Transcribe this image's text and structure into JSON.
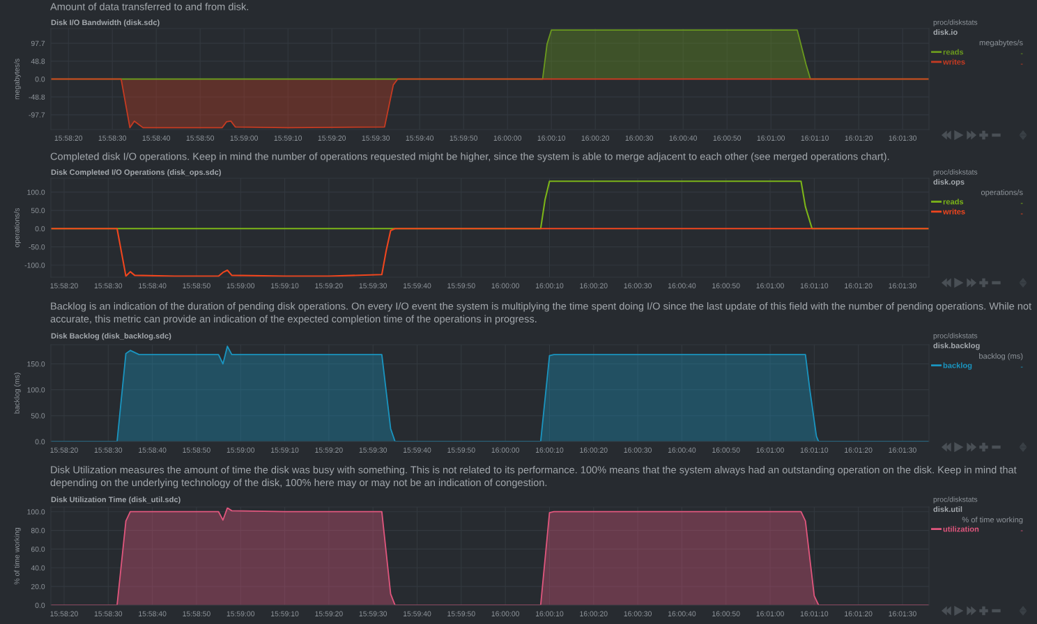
{
  "chart_data": [
    {
      "type": "area",
      "subtitle": "Amount of data transferred to and from disk.",
      "title": "Disk I/O Bandwidth (disk.sdc)",
      "ylabel": "megabytes/s",
      "annotations": [
        "proc/diskstats",
        "disk.io",
        "megabytes/s",
        "-",
        "-"
      ],
      "legend": "right",
      "grid": true,
      "xlim": [
        15.971111,
        16.026667
      ],
      "ylim": [
        -138,
        138
      ],
      "yticks": [
        97.7,
        48.8,
        {
          "value": 0,
          "label": "0.0"
        },
        -48.8,
        -97.7
      ],
      "xticks": [
        {
          "value": 15.972222,
          "label": "15:58:20"
        },
        {
          "value": 15.975,
          "label": "15:58:30"
        },
        {
          "value": 15.977778,
          "label": "15:58:40"
        },
        {
          "value": 15.980556,
          "label": "15:58:50"
        },
        {
          "value": 15.983333,
          "label": "15:59:00"
        },
        {
          "value": 15.986111,
          "label": "15:59:10"
        },
        {
          "value": 15.988889,
          "label": "15:59:20"
        },
        {
          "value": 15.991667,
          "label": "15:59:30"
        },
        {
          "value": 15.994444,
          "label": "15:59:40"
        },
        {
          "value": 15.997222,
          "label": "15:59:50"
        },
        {
          "value": 16.0,
          "label": "16:00:00"
        },
        {
          "value": 16.002778,
          "label": "16:00:10"
        },
        {
          "value": 16.005556,
          "label": "16:00:20"
        },
        {
          "value": 16.008333,
          "label": "16:00:30"
        },
        {
          "value": 16.011111,
          "label": "16:00:40"
        },
        {
          "value": 16.013889,
          "label": "16:00:50"
        },
        {
          "value": 16.016667,
          "label": "16:01:00"
        },
        {
          "value": 16.019444,
          "label": "16:01:10"
        },
        {
          "value": 16.022222,
          "label": "16:01:20"
        },
        {
          "value": 16.025,
          "label": "16:01:30"
        }
      ],
      "series": [
        {
          "name": "reads",
          "color": "#6b9a1e",
          "x": [
            15.971111,
            16.002222,
            16.0025,
            16.002778,
            16.008333,
            16.013889,
            16.018333,
            16.018889,
            16.019167,
            16.026667
          ],
          "values": [
            0,
            0,
            95,
            134,
            134,
            134,
            134,
            40,
            0,
            0
          ]
        },
        {
          "name": "writes",
          "color": "#c63b22",
          "x": [
            15.971111,
            15.975556,
            15.976111,
            15.976389,
            15.976944,
            15.979167,
            15.981944,
            15.982222,
            15.9825,
            15.982778,
            15.986111,
            15.988889,
            15.992222,
            15.992778,
            15.993056,
            16.026667
          ],
          "values": [
            0,
            0,
            -133,
            -115,
            -133,
            -133,
            -133,
            -117,
            -115,
            -131,
            -133,
            -132,
            -131,
            -16,
            0,
            0
          ]
        }
      ]
    },
    {
      "type": "line",
      "subtitle": "Completed disk I/O operations. Keep in mind the number of operations requested might be higher, since the system is able to merge adjacent to each other (see merged operations chart).",
      "title": "Disk Completed I/O Operations (disk_ops.sdc)",
      "ylabel": "operations/s",
      "annotations": [
        "proc/diskstats",
        "disk.ops",
        "operations/s",
        "-",
        "-"
      ],
      "legend": "right",
      "grid": true,
      "xlim": [
        15.971389,
        16.026667
      ],
      "ylim": [
        -133,
        138
      ],
      "yticks": [
        {
          "value": 100,
          "label": "100.0"
        },
        {
          "value": 50,
          "label": "50.0"
        },
        {
          "value": 0,
          "label": "0.0"
        },
        {
          "value": -50,
          "label": "-50.0"
        },
        {
          "value": -100,
          "label": "-100.0"
        }
      ],
      "xticks": [
        {
          "value": 15.972222,
          "label": "15:58:20"
        },
        {
          "value": 15.975,
          "label": "15:58:30"
        },
        {
          "value": 15.977778,
          "label": "15:58:40"
        },
        {
          "value": 15.980556,
          "label": "15:58:50"
        },
        {
          "value": 15.983333,
          "label": "15:59:00"
        },
        {
          "value": 15.986111,
          "label": "15:59:10"
        },
        {
          "value": 15.988889,
          "label": "15:59:20"
        },
        {
          "value": 15.991667,
          "label": "15:59:30"
        },
        {
          "value": 15.994444,
          "label": "15:59:40"
        },
        {
          "value": 15.997222,
          "label": "15:59:50"
        },
        {
          "value": 16.0,
          "label": "16:00:00"
        },
        {
          "value": 16.002778,
          "label": "16:00:10"
        },
        {
          "value": 16.005556,
          "label": "16:00:20"
        },
        {
          "value": 16.008333,
          "label": "16:00:30"
        },
        {
          "value": 16.011111,
          "label": "16:00:40"
        },
        {
          "value": 16.013889,
          "label": "16:00:50"
        },
        {
          "value": 16.016667,
          "label": "16:01:00"
        },
        {
          "value": 16.019444,
          "label": "16:01:10"
        },
        {
          "value": 16.022222,
          "label": "16:01:20"
        },
        {
          "value": 16.025,
          "label": "16:01:30"
        }
      ],
      "series": [
        {
          "name": "reads",
          "color": "#7cb518",
          "x": [
            15.971389,
            16.002222,
            16.0025,
            16.002778,
            16.008333,
            16.013889,
            16.018611,
            16.018889,
            16.019306,
            16.026667
          ],
          "values": [
            0,
            0,
            80,
            130,
            130,
            130,
            130,
            60,
            0,
            0
          ]
        },
        {
          "name": "writes",
          "color": "#f0461e",
          "x": [
            15.971389,
            15.975556,
            15.976111,
            15.976389,
            15.976667,
            15.979167,
            15.981944,
            15.982222,
            15.9825,
            15.982778,
            15.986111,
            15.988889,
            15.992222,
            15.9925,
            15.992778,
            15.993056,
            16.026667
          ],
          "values": [
            0,
            0,
            -130,
            -118,
            -128,
            -130,
            -130,
            -120,
            -114,
            -128,
            -130,
            -130,
            -126,
            -60,
            -5,
            0,
            0
          ]
        }
      ]
    },
    {
      "type": "area",
      "subtitle": "Backlog is an indication of the duration of pending disk operations. On every I/O event the system is multiplying the time spent doing I/O since the last update of this field with the number of pending operations. While not accurate, this metric can provide an indication of the expected completion time of the operations in progress.",
      "title": "Disk Backlog (disk_backlog.sdc)",
      "ylabel": "backlog (ms)",
      "annotations": [
        "proc/diskstats",
        "disk.backlog",
        "backlog (ms)",
        "-"
      ],
      "legend": "right",
      "grid": true,
      "xlim": [
        15.971389,
        16.026667
      ],
      "ylim": [
        0,
        187
      ],
      "yticks": [
        {
          "value": 150,
          "label": "150.0"
        },
        {
          "value": 100,
          "label": "100.0"
        },
        {
          "value": 50,
          "label": "50.0"
        },
        {
          "value": 0,
          "label": "0.0"
        }
      ],
      "xticks": [
        {
          "value": 15.972222,
          "label": "15:58:20"
        },
        {
          "value": 15.975,
          "label": "15:58:30"
        },
        {
          "value": 15.977778,
          "label": "15:58:40"
        },
        {
          "value": 15.980556,
          "label": "15:58:50"
        },
        {
          "value": 15.983333,
          "label": "15:59:00"
        },
        {
          "value": 15.986111,
          "label": "15:59:10"
        },
        {
          "value": 15.988889,
          "label": "15:59:20"
        },
        {
          "value": 15.991667,
          "label": "15:59:30"
        },
        {
          "value": 15.994444,
          "label": "15:59:40"
        },
        {
          "value": 15.997222,
          "label": "15:59:50"
        },
        {
          "value": 16.0,
          "label": "16:00:00"
        },
        {
          "value": 16.002778,
          "label": "16:00:10"
        },
        {
          "value": 16.005556,
          "label": "16:00:20"
        },
        {
          "value": 16.008333,
          "label": "16:00:30"
        },
        {
          "value": 16.011111,
          "label": "16:00:40"
        },
        {
          "value": 16.013889,
          "label": "16:00:50"
        },
        {
          "value": 16.016667,
          "label": "16:01:00"
        },
        {
          "value": 16.019444,
          "label": "16:01:10"
        },
        {
          "value": 16.022222,
          "label": "16:01:20"
        },
        {
          "value": 16.025,
          "label": "16:01:30"
        }
      ],
      "series": [
        {
          "name": "backlog",
          "color": "#1a95c0",
          "x": [
            15.971389,
            15.975556,
            15.976111,
            15.976389,
            15.976944,
            15.979167,
            15.981944,
            15.982222,
            15.9825,
            15.982778,
            15.986111,
            15.988889,
            15.992222,
            15.992778,
            15.993056,
            16.002222,
            16.002778,
            16.003056,
            16.008333,
            16.013889,
            16.018889,
            16.019167,
            16.019583,
            16.019722,
            16.026667
          ],
          "values": [
            0,
            0,
            170,
            176,
            168,
            168,
            168,
            150,
            184,
            168,
            168,
            168,
            168,
            25,
            0,
            0,
            166,
            168,
            168,
            168,
            168,
            100,
            10,
            0,
            0
          ]
        }
      ]
    },
    {
      "type": "area",
      "subtitle": "Disk Utilization measures the amount of time the disk was busy with something. This is not related to its performance. 100% means that the system always had an outstanding operation on the disk. Keep in mind that depending on the underlying technology of the disk, 100% here may or may not be an indication of congestion.",
      "title": "Disk Utilization Time (disk_util.sdc)",
      "ylabel": "% of time working",
      "annotations": [
        "proc/diskstats",
        "disk.util",
        "% of time working",
        "-"
      ],
      "legend": "right",
      "grid": true,
      "xlim": [
        15.971389,
        16.026667
      ],
      "ylim": [
        0,
        105
      ],
      "yticks": [
        {
          "value": 100,
          "label": "100.0"
        },
        {
          "value": 80,
          "label": "80.0"
        },
        {
          "value": 60,
          "label": "60.0"
        },
        {
          "value": 40,
          "label": "40.0"
        },
        {
          "value": 20,
          "label": "20.0"
        },
        {
          "value": 0,
          "label": "0.0"
        }
      ],
      "xticks": [
        {
          "value": 15.972222,
          "label": "15:58:20"
        },
        {
          "value": 15.975,
          "label": "15:58:30"
        },
        {
          "value": 15.977778,
          "label": "15:58:40"
        },
        {
          "value": 15.980556,
          "label": "15:58:50"
        },
        {
          "value": 15.983333,
          "label": "15:59:00"
        },
        {
          "value": 15.986111,
          "label": "15:59:10"
        },
        {
          "value": 15.988889,
          "label": "15:59:20"
        },
        {
          "value": 15.991667,
          "label": "15:59:30"
        },
        {
          "value": 15.994444,
          "label": "15:59:40"
        },
        {
          "value": 15.997222,
          "label": "15:59:50"
        },
        {
          "value": 16.0,
          "label": "16:00:00"
        },
        {
          "value": 16.002778,
          "label": "16:00:10"
        },
        {
          "value": 16.005556,
          "label": "16:00:20"
        },
        {
          "value": 16.008333,
          "label": "16:00:30"
        },
        {
          "value": 16.011111,
          "label": "16:00:40"
        },
        {
          "value": 16.013889,
          "label": "16:00:50"
        },
        {
          "value": 16.016667,
          "label": "16:01:00"
        },
        {
          "value": 16.019444,
          "label": "16:01:10"
        },
        {
          "value": 16.022222,
          "label": "16:01:20"
        },
        {
          "value": 16.025,
          "label": "16:01:30"
        }
      ],
      "series": [
        {
          "name": "utilization",
          "color": "#e0567d",
          "x": [
            15.971389,
            15.975556,
            15.976111,
            15.976389,
            15.979167,
            15.981944,
            15.982222,
            15.9825,
            15.982778,
            15.986111,
            15.988889,
            15.992222,
            15.992778,
            15.993056,
            16.002222,
            16.002778,
            16.003056,
            16.008333,
            16.013889,
            16.018611,
            16.018889,
            16.019444,
            16.019722,
            16.026667
          ],
          "values": [
            0,
            0,
            90,
            100,
            100,
            100,
            91,
            104,
            101,
            100,
            100,
            100,
            12,
            0,
            0,
            99,
            100,
            100,
            100,
            100,
            90,
            10,
            0,
            0
          ]
        }
      ]
    }
  ]
}
